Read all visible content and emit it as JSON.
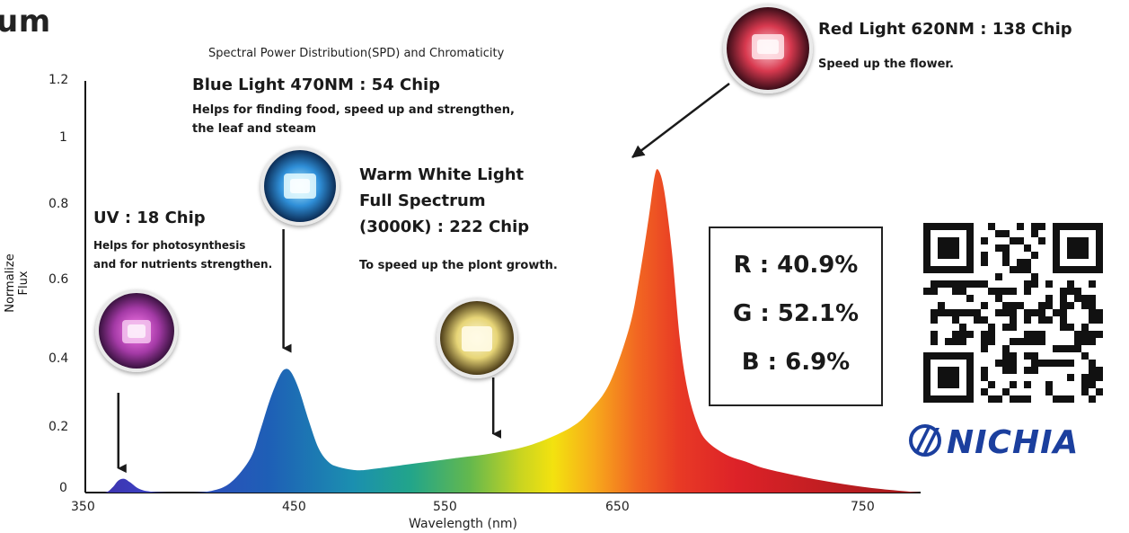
{
  "page": {
    "cut_title": "um",
    "brand": "NICHIA",
    "qr_icon": "qr-code-icon"
  },
  "chart_data": {
    "type": "area",
    "title": "Spectral Power Distribution(SPD) and Chromaticity",
    "xlabel": "Wavelength (nm)",
    "ylabel": "Normalize Flux",
    "xlim": [
      350,
      780
    ],
    "ylim": [
      0,
      1.2
    ],
    "x_ticks": [
      "350",
      "450",
      "550",
      "650",
      "750"
    ],
    "y_ticks": [
      "0",
      "0.2",
      "0.4",
      "0.6",
      "0.8",
      "1",
      "1.2"
    ],
    "grid": false,
    "x": [
      350,
      360,
      364,
      367,
      370,
      373,
      378,
      385,
      400,
      415,
      425,
      435,
      440,
      445,
      450,
      453,
      456,
      460,
      465,
      470,
      475,
      480,
      490,
      500,
      520,
      540,
      560,
      580,
      600,
      610,
      620,
      630,
      635,
      640,
      643,
      645,
      648,
      652,
      656,
      660,
      665,
      670,
      680,
      690,
      700,
      720,
      740,
      760,
      780
    ],
    "y": [
      0,
      0,
      0.015,
      0.035,
      0.04,
      0.03,
      0.01,
      0.002,
      0,
      0.005,
      0.03,
      0.1,
      0.18,
      0.27,
      0.34,
      0.36,
      0.35,
      0.3,
      0.21,
      0.13,
      0.09,
      0.075,
      0.065,
      0.07,
      0.085,
      0.1,
      0.115,
      0.14,
      0.19,
      0.24,
      0.32,
      0.48,
      0.62,
      0.8,
      0.92,
      0.94,
      0.88,
      0.7,
      0.45,
      0.3,
      0.2,
      0.15,
      0.11,
      0.09,
      0.07,
      0.045,
      0.025,
      0.01,
      0
    ],
    "ratios": [
      {
        "label": "R : 40.9%"
      },
      {
        "label": "G : 52.1%"
      },
      {
        "label": "B : 6.9%"
      }
    ],
    "annotations": [
      {
        "key": "uv",
        "title": "UV : 18 Chip",
        "lines": [
          "Helps for photosynthesis",
          "and for nutrients strengthen."
        ],
        "arrow_x": 367,
        "arrow_y_end": 0.06,
        "chip_color": "#b548b8"
      },
      {
        "key": "blue",
        "title": "Blue Light 470NM : 54 Chip",
        "lines": [
          "Helps for finding food, speed up and strengthen,",
          "the leaf and steam"
        ],
        "arrow_x": 452,
        "arrow_y_end": 0.41,
        "chip_color": "#3b8fd6"
      },
      {
        "key": "white",
        "title_lines": [
          "Warm White Light",
          "Full Spectrum",
          "(3000K) : 222 Chip"
        ],
        "lines": [
          "To speed up the plont growth."
        ],
        "arrow_x": 560,
        "arrow_y_end": 0.16,
        "chip_color": "#f3e58c"
      },
      {
        "key": "red",
        "title": "Red Light 620NM : 138 Chip",
        "lines": [
          "Speed up the flower."
        ],
        "chip_color": "#d8394f"
      }
    ]
  }
}
